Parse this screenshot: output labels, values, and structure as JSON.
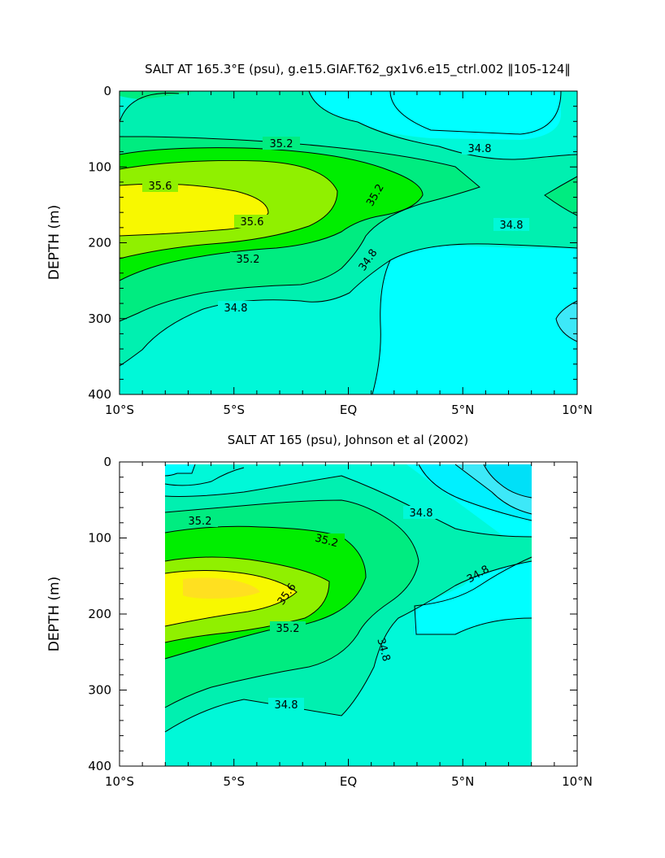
{
  "chart_data": [
    {
      "type": "heatmap",
      "title": "SALT AT 165.3°E (psu), g.e15.GIAF.T62_gx1v6.e15_ctrl.002 ‖105-124‖",
      "ylabel": "DEPTH (m)",
      "xlabel": "",
      "x_ticks": [
        "10°S",
        "5°S",
        "EQ",
        "5°N",
        "10°N"
      ],
      "y_ticks": [
        "0",
        "100",
        "200",
        "300",
        "400"
      ],
      "xlim": [
        -10,
        10
      ],
      "ylim": [
        0,
        400
      ],
      "contour_interval": 0.2,
      "contour_labels": [
        "35.2",
        "35.6",
        "35.6",
        "35.2",
        "35.2",
        "34.8",
        "34.8",
        "34.8",
        "34.8"
      ],
      "core_max": 35.8
    },
    {
      "type": "heatmap",
      "title": "SALT AT 165 (psu), Johnson et al (2002)",
      "ylabel": "DEPTH (m)",
      "xlabel": "",
      "x_ticks": [
        "10°S",
        "5°S",
        "EQ",
        "5°N",
        "10°N"
      ],
      "y_ticks": [
        "0",
        "100",
        "200",
        "300",
        "400"
      ],
      "xlim": [
        -10,
        10
      ],
      "ylim": [
        0,
        400
      ],
      "data_xrange": [
        -8,
        8
      ],
      "contour_interval": 0.2,
      "contour_labels": [
        "35.2",
        "35.2",
        "35.6",
        "35.2",
        "34.8",
        "34.8",
        "34.8",
        "34.8"
      ],
      "core_max": 35.8
    }
  ],
  "colors": {
    "fresh_cyan_dark": "#00e0f8",
    "fresh_cyan": "#3de8f8",
    "cyan": "#00ffff",
    "aqua": "#00f8d8",
    "aqua_green": "#00f0b0",
    "teal_green": "#00ec80",
    "light_green": "#40f060",
    "green": "#00ee00",
    "yellow_green": "#90f000",
    "yellow": "#f8f800",
    "gold": "#ffe020"
  }
}
